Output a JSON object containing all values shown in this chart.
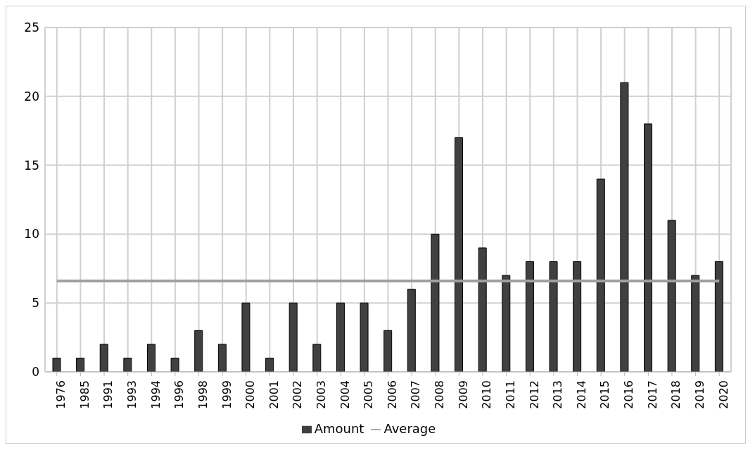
{
  "chart_data": {
    "type": "bar",
    "categories": [
      "1976",
      "1985",
      "1991",
      "1993",
      "1994",
      "1996",
      "1998",
      "1999",
      "2000",
      "2001",
      "2002",
      "2003",
      "2004",
      "2005",
      "2006",
      "2007",
      "2008",
      "2009",
      "2010",
      "2011",
      "2012",
      "2013",
      "2014",
      "2015",
      "2016",
      "2017",
      "2018",
      "2019",
      "2020"
    ],
    "series": [
      {
        "name": "Amount",
        "color": "#404040",
        "values": [
          1,
          1,
          2,
          1,
          2,
          1,
          3,
          2,
          5,
          1,
          5,
          2,
          5,
          5,
          3,
          6,
          10,
          17,
          9,
          7,
          8,
          8,
          8,
          14,
          21,
          18,
          11,
          7,
          8
        ]
      },
      {
        "name": "Average",
        "type": "line",
        "color": "#a0a0a0",
        "values": [
          6.6,
          6.6,
          6.6,
          6.6,
          6.6,
          6.6,
          6.6,
          6.6,
          6.6,
          6.6,
          6.6,
          6.6,
          6.6,
          6.6,
          6.6,
          6.6,
          6.6,
          6.6,
          6.6,
          6.6,
          6.6,
          6.6,
          6.6,
          6.6,
          6.6,
          6.6,
          6.6,
          6.6,
          6.6
        ]
      }
    ],
    "ylim": [
      0,
      25
    ],
    "yticks": [
      0,
      5,
      10,
      15,
      20,
      25
    ],
    "grid": true,
    "legend": "bottom",
    "marker": "none"
  }
}
